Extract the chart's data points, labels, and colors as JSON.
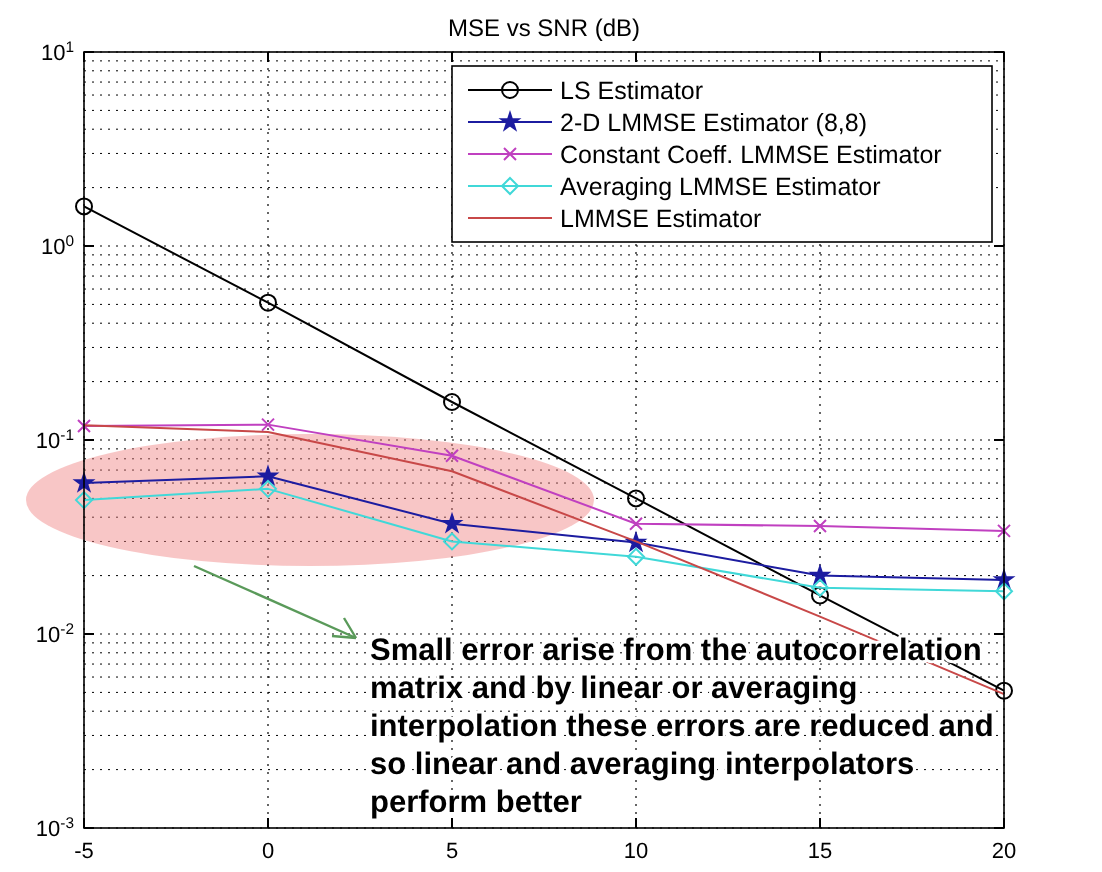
{
  "chart_data": {
    "type": "line",
    "title": "MSE vs SNR (dB)",
    "x": [
      -5,
      0,
      5,
      10,
      15,
      20
    ],
    "xlim": [
      -5,
      20
    ],
    "xticks": [
      -5,
      0,
      5,
      10,
      15,
      20
    ],
    "ylim": [
      0.001,
      10
    ],
    "yticks": [
      {
        "value": 0.001,
        "label": "10$^{-3}$"
      },
      {
        "value": 0.01,
        "label": "10$^{-2}$"
      },
      {
        "value": 0.1,
        "label": "10$^{-1}$"
      },
      {
        "value": 1,
        "label": "10$^{0}$"
      },
      {
        "value": 10,
        "label": "10$^{1}$"
      }
    ],
    "log": "y",
    "grid": true,
    "legend": "top right",
    "line_style": "solid",
    "series": [
      {
        "name": "LS Estimator",
        "color": "#000000",
        "marker": "circle",
        "values": [
          1.6,
          0.51,
          0.157,
          0.05,
          0.0158,
          0.0051
        ]
      },
      {
        "name": "2-D LMMSE Estimator (8,8)",
        "color": "#1c1ca0",
        "marker": "star",
        "values": [
          0.06,
          0.065,
          0.037,
          0.0296,
          0.02,
          0.019
        ]
      },
      {
        "name": "Constant Coeff. LMMSE Estimator",
        "color": "#c040c0",
        "marker": "cross",
        "values": [
          0.118,
          0.12,
          0.083,
          0.037,
          0.036,
          0.034
        ]
      },
      {
        "name": "Averaging LMMSE Estimator",
        "color": "#40d8d8",
        "marker": "diamond",
        "values": [
          0.049,
          0.056,
          0.03,
          0.025,
          0.0173,
          0.0166
        ]
      },
      {
        "name": "LMMSE Estimator",
        "color": "#c84848",
        "marker": "none",
        "values": [
          0.119,
          0.11,
          0.069,
          0.03,
          0.0123,
          0.0049
        ]
      }
    ],
    "annotations": [
      "Small error arise from the autocorrelation matrix and by linear or averaging interpolation these errors are reduced and so linear and averaging interpolators perform better"
    ]
  }
}
